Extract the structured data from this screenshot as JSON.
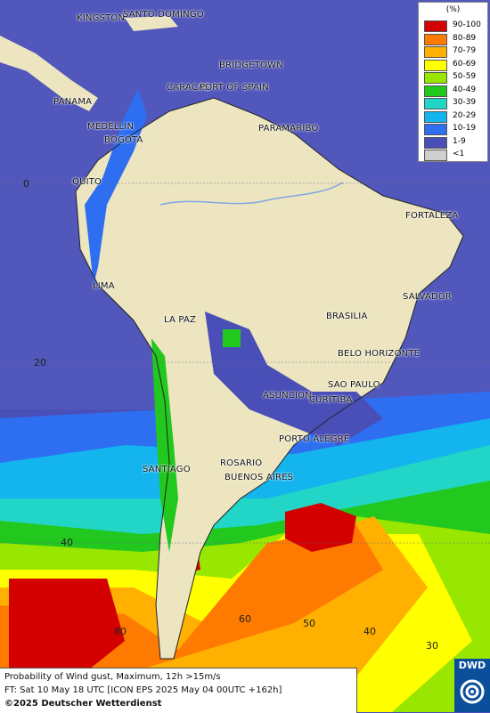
{
  "map": {
    "cities": [
      {
        "name": "KINGSTON"
      },
      {
        "name": "SANTO DOMINGO"
      },
      {
        "name": "BRIDGETOWN"
      },
      {
        "name": "CARACAS"
      },
      {
        "name": "PORT OF SPAIN"
      },
      {
        "name": "PANAMA"
      },
      {
        "name": "MEDELLIN"
      },
      {
        "name": "PARAMARIBO"
      },
      {
        "name": "BOGOTA"
      },
      {
        "name": "QUITO"
      },
      {
        "name": "FORTALEZA"
      },
      {
        "name": "LIMA"
      },
      {
        "name": "SALVADOR"
      },
      {
        "name": "LA PAZ"
      },
      {
        "name": "BRASILIA"
      },
      {
        "name": "BELO HORIZONTE"
      },
      {
        "name": "SAO PAULO"
      },
      {
        "name": "ASUNCION"
      },
      {
        "name": "CURITIBA"
      },
      {
        "name": "PORTO ALEGRE"
      },
      {
        "name": "ROSARIO"
      },
      {
        "name": "SANTIAGO"
      },
      {
        "name": "BUENOS AIRES"
      }
    ],
    "grid_labels": [
      "0",
      "20",
      "40",
      "80",
      "60",
      "50",
      "40",
      "30"
    ]
  },
  "legend": {
    "unit": "(%)",
    "classes": [
      {
        "label": "90-100",
        "color": "#d40000"
      },
      {
        "label": "80-89",
        "color": "#ff7a00"
      },
      {
        "label": "70-79",
        "color": "#ffb000"
      },
      {
        "label": "60-69",
        "color": "#ffff00"
      },
      {
        "label": "50-59",
        "color": "#99e600"
      },
      {
        "label": "40-49",
        "color": "#22c81e"
      },
      {
        "label": "30-39",
        "color": "#21d6c6"
      },
      {
        "label": "20-29",
        "color": "#14b4ee"
      },
      {
        "label": "10-19",
        "color": "#2e6ff2"
      },
      {
        "label": "1-9",
        "color": "#4a4fb8"
      },
      {
        "label": "<1",
        "color": "#cfcfcf"
      }
    ]
  },
  "caption": {
    "line1": "Probability of Wind gust, Maximum, 12h >15m/s",
    "line2": "FT: Sat 10 May 18 UTC [ICON EPS 2025 May 04 00UTC +162h]",
    "line3": "©2025 Deutscher Wetterdienst"
  },
  "logo": {
    "text": "DWD"
  }
}
